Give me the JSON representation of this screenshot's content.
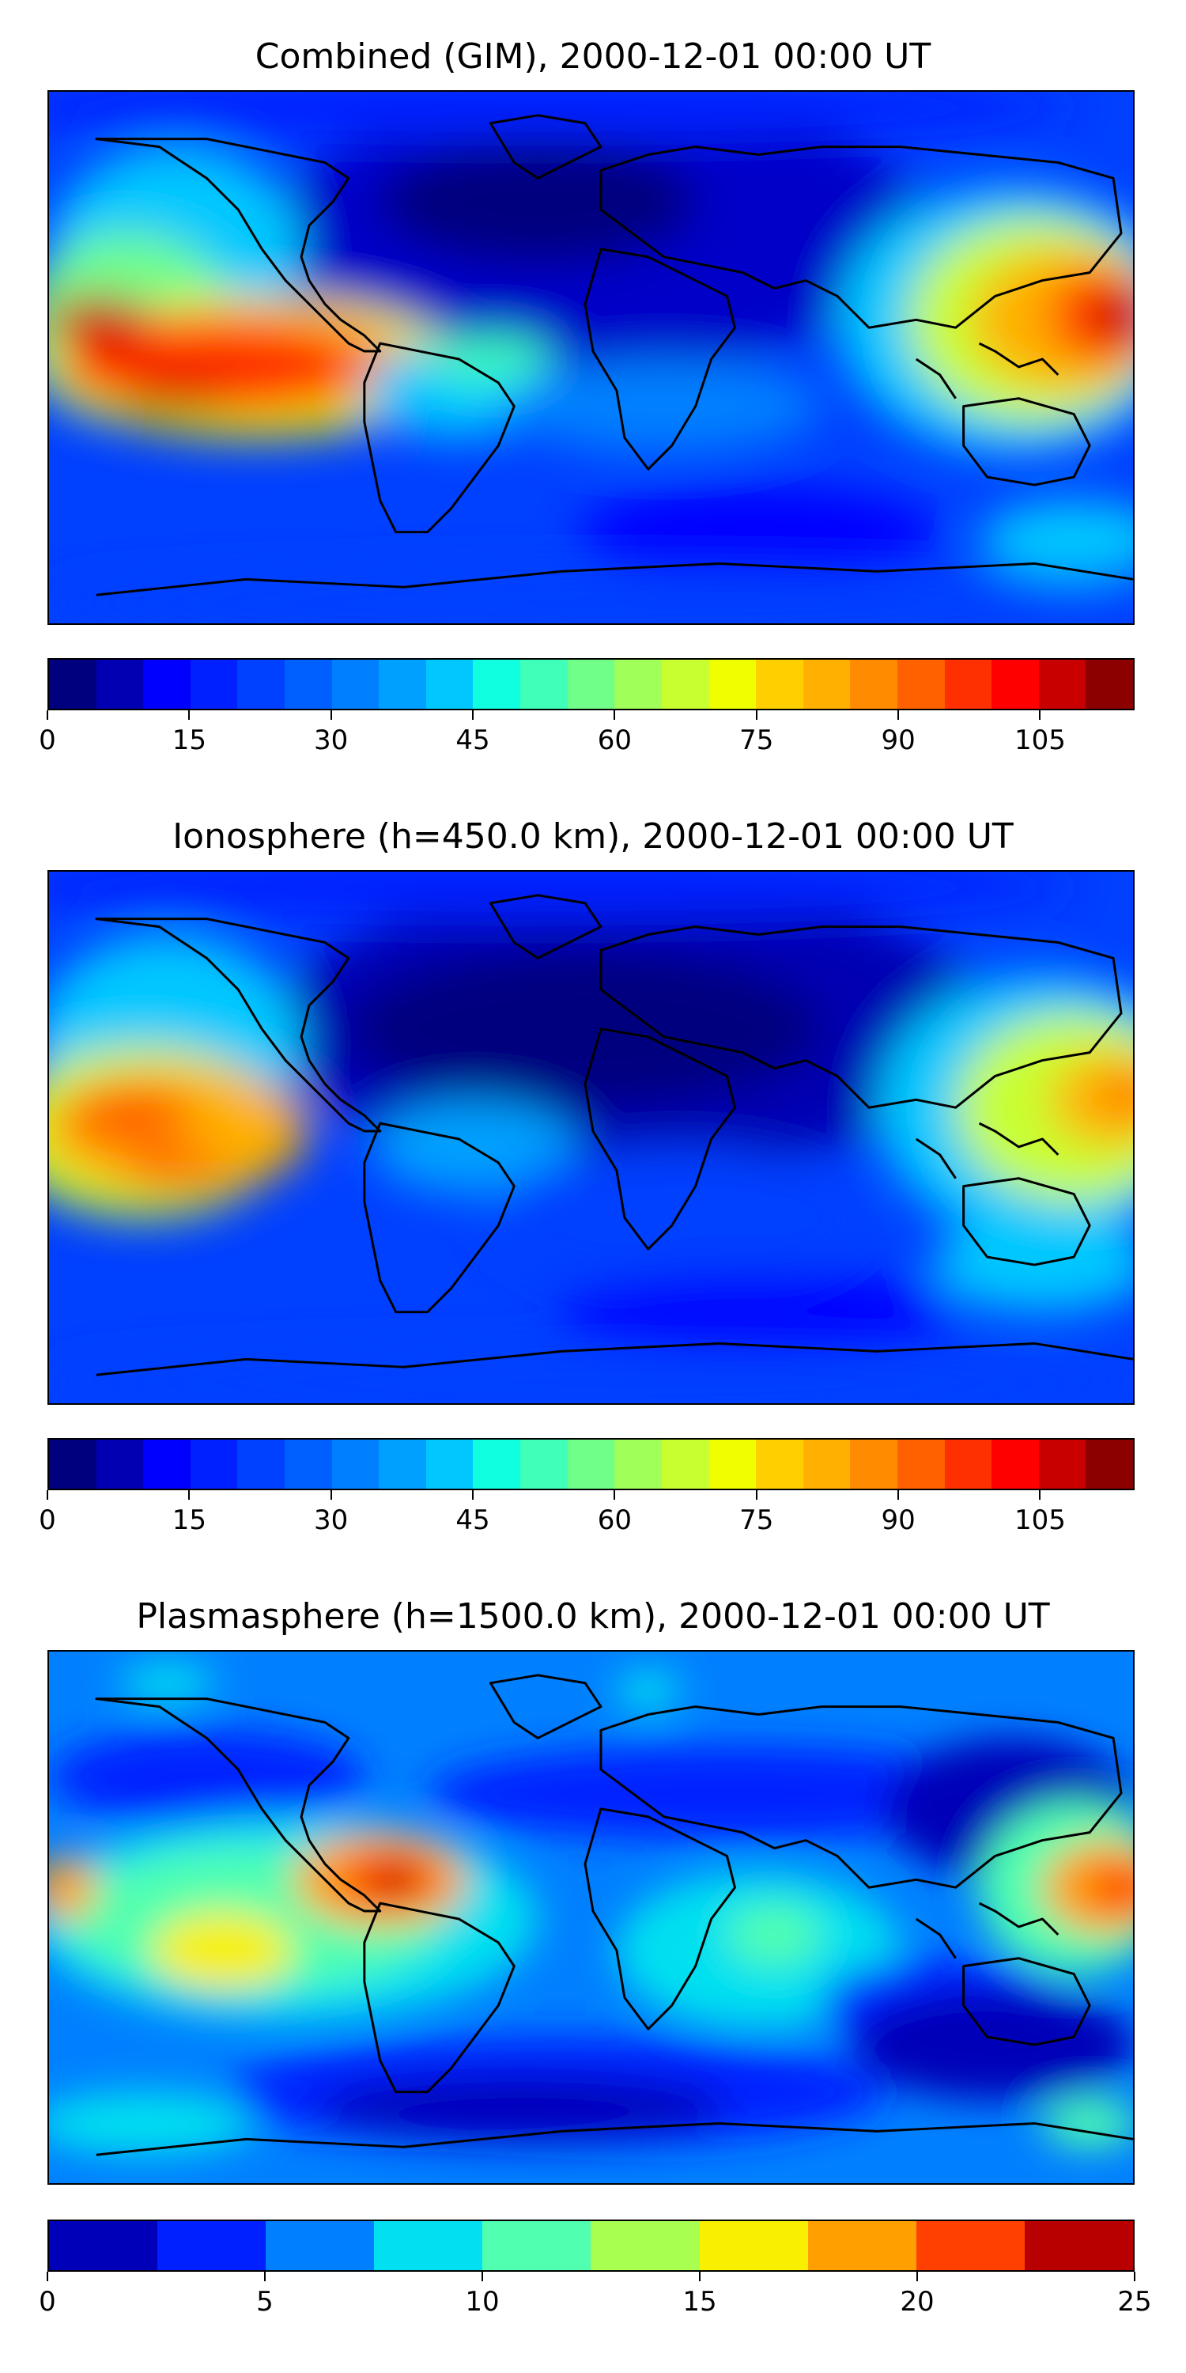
{
  "panels": [
    {
      "title": "Combined (GIM), 2000-12-01 00:00 UT",
      "colorbar": {
        "colors": [
          "#00007f",
          "#0000b2",
          "#0000ff",
          "#0020ff",
          "#0040ff",
          "#0060ff",
          "#0080ff",
          "#00a0ff",
          "#00c8ff",
          "#10ffe0",
          "#40ffb8",
          "#70ff88",
          "#a0ff58",
          "#c8ff30",
          "#f0ff00",
          "#ffd000",
          "#ffb000",
          "#ff8c00",
          "#ff6000",
          "#ff3000",
          "#ff0000",
          "#c80000",
          "#8c0000"
        ],
        "ticks": [
          "0",
          "15",
          "30",
          "45",
          "60",
          "75",
          "90",
          "105"
        ],
        "tick_values": [
          0,
          15,
          30,
          45,
          60,
          75,
          90,
          105
        ],
        "vmin": 0,
        "vmax": 115
      }
    },
    {
      "title": "Ionosphere  (h=450.0 km), 2000-12-01 00:00 UT",
      "colorbar": {
        "colors": [
          "#00007f",
          "#0000b2",
          "#0000ff",
          "#0020ff",
          "#0040ff",
          "#0060ff",
          "#0080ff",
          "#00a0ff",
          "#00c8ff",
          "#10ffe0",
          "#40ffb8",
          "#70ff88",
          "#a0ff58",
          "#c8ff30",
          "#f0ff00",
          "#ffd000",
          "#ffb000",
          "#ff8c00",
          "#ff6000",
          "#ff3000",
          "#ff0000",
          "#c80000",
          "#8c0000"
        ],
        "ticks": [
          "0",
          "15",
          "30",
          "45",
          "60",
          "75",
          "90",
          "105"
        ],
        "tick_values": [
          0,
          15,
          30,
          45,
          60,
          75,
          90,
          105
        ],
        "vmin": 0,
        "vmax": 115
      }
    },
    {
      "title": "Plasmasphere (h=1500.0 km), 2000-12-01 00:00 UT",
      "colorbar": {
        "colors": [
          "#0000b8",
          "#0020ff",
          "#0080ff",
          "#00e0f0",
          "#50ffb0",
          "#a8ff50",
          "#f8f000",
          "#ffa000",
          "#ff4000",
          "#b80000"
        ],
        "ticks": [
          "0",
          "5",
          "10",
          "15",
          "20",
          "25"
        ],
        "tick_values": [
          0,
          5,
          10,
          15,
          20,
          25
        ],
        "vmin": 0,
        "vmax": 25
      }
    }
  ]
}
